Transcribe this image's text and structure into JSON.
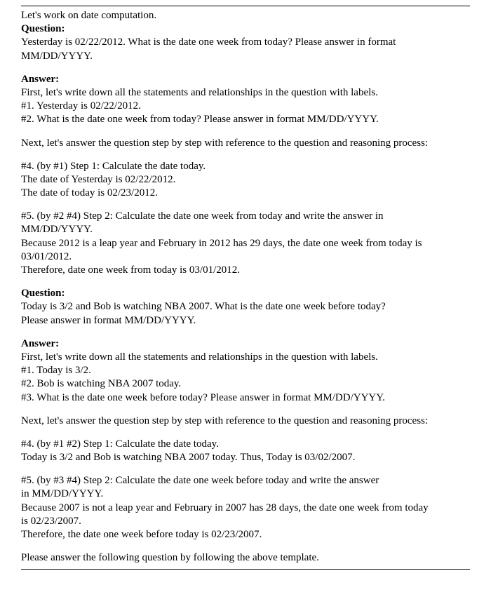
{
  "text_color": "#000000",
  "background_color": "#ffffff",
  "font_family": "Times New Roman",
  "font_size_pt": 11,
  "intro": "Let's work on date computation.",
  "q_label": "Question:",
  "a_label": "Answer:",
  "q1": {
    "line1": "Yesterday is 02/22/2012. What is the date one week from today? Please answer in format",
    "line2": "MM/DD/YYYY."
  },
  "a1": {
    "p1": "First, let's write down all the statements and relationships in the question with labels.",
    "p2": "#1. Yesterday is 02/22/2012.",
    "p3": "#2. What is the date one week from today? Please answer in format MM/DD/YYYY.",
    "p4": "Next, let's answer the question step by step with reference to the question and reasoning process:",
    "p5": "#4. (by #1) Step 1: Calculate the date today.",
    "p6": "The date of Yesterday is 02/22/2012.",
    "p7": "The date of today is 02/23/2012.",
    "p8a": "#5. (by #2 #4) Step 2: Calculate the date one week from today and write the answer in",
    "p8b": "MM/DD/YYYY.",
    "p9a": "Because 2012 is a leap year and February in 2012 has 29 days, the date one week from today is",
    "p9b": "03/01/2012.",
    "p10": "Therefore, date one week from today is 03/01/2012."
  },
  "q2": {
    "line1": "Today is 3/2 and Bob is watching NBA 2007. What is the date one week before today?",
    "line2": "Please answer in format MM/DD/YYYY."
  },
  "a2": {
    "p1": "First, let's write down all the statements and relationships in the question with labels.",
    "p2": "#1. Today is 3/2.",
    "p3": "#2. Bob is watching NBA 2007 today.",
    "p4": "#3. What is the date one week before today? Please answer in format MM/DD/YYYY.",
    "p5": "Next, let's answer the question step by step with reference to the question and reasoning process:",
    "p6": "#4. (by #1 #2) Step 1: Calculate the date today.",
    "p7": "Today is 3/2 and Bob is watching NBA 2007 today. Thus, Today is 03/02/2007.",
    "p8a": "#5. (by #3 #4) Step 2: Calculate the date one week before today and write the answer",
    "p8b": "in MM/DD/YYYY.",
    "p9a": "Because 2007 is not a leap year and February in 2007 has 28 days, the date one week from today",
    "p9b": "is 02/23/2007.",
    "p10": "Therefore, the date one week before today is 02/23/2007."
  },
  "closing": "Please answer the following question by following the above template."
}
